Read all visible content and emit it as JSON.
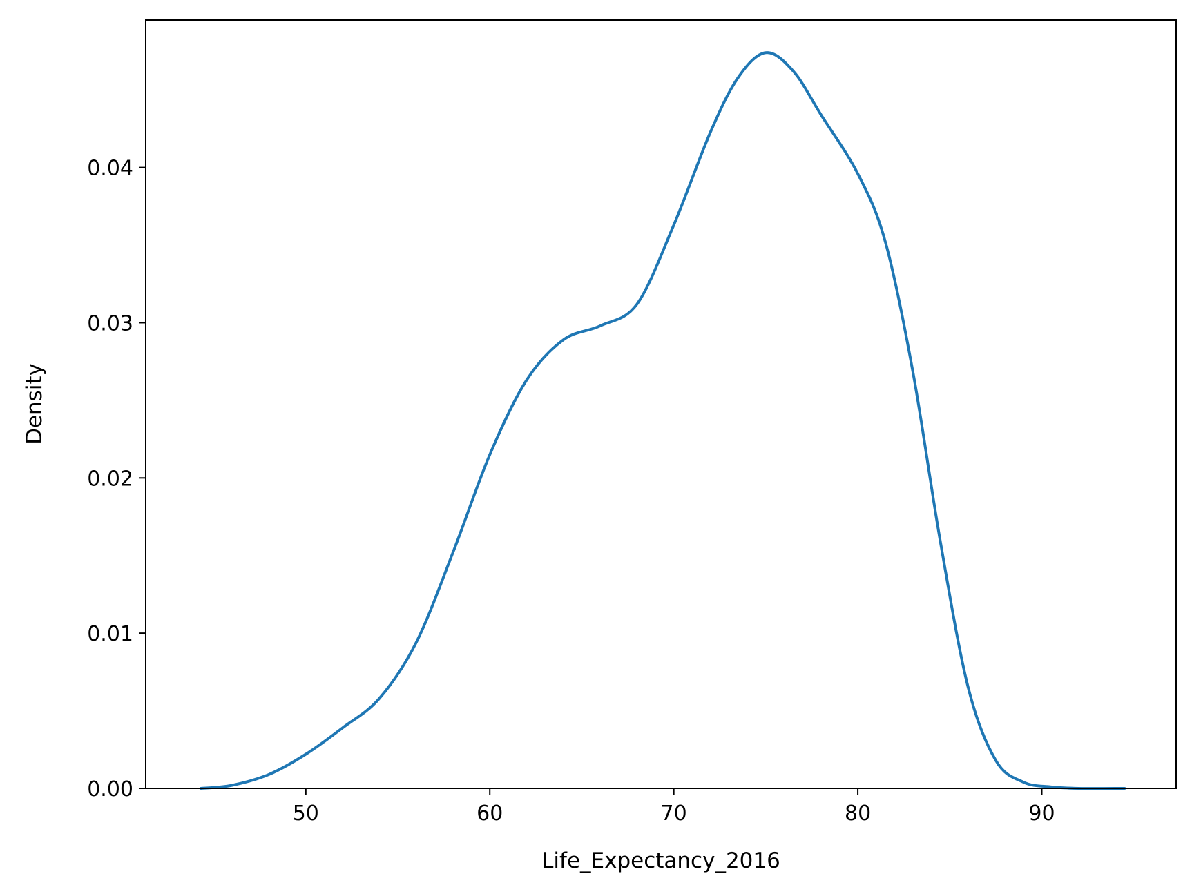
{
  "chart_data": {
    "type": "line",
    "title": "",
    "xlabel": "Life_Expectancy_2016",
    "ylabel": "Density",
    "xlim": [
      41.3,
      97.3
    ],
    "ylim": [
      0.0,
      0.0495
    ],
    "x_ticks": [
      50,
      60,
      70,
      80,
      90
    ],
    "x_tick_labels": [
      "50",
      "60",
      "70",
      "80",
      "90"
    ],
    "y_ticks": [
      0.0,
      0.01,
      0.02,
      0.03,
      0.04
    ],
    "y_tick_labels": [
      "0.00",
      "0.01",
      "0.02",
      "0.03",
      "0.04"
    ],
    "grid": false,
    "line_color": "#1f77b4",
    "series": [
      {
        "x": [
          44.3,
          46.0,
          48.0,
          50.0,
          52.0,
          54.0,
          56.0,
          58.0,
          60.0,
          62.0,
          64.0,
          66.0,
          68.0,
          70.0,
          72.0,
          73.5,
          75.0,
          76.5,
          78.0,
          80.0,
          81.5,
          83.0,
          84.5,
          86.0,
          87.5,
          89.0,
          90.5,
          92.0,
          94.5
        ],
        "y": [
          0.0,
          0.0002,
          0.0009,
          0.0022,
          0.0039,
          0.0058,
          0.0094,
          0.0152,
          0.0215,
          0.0263,
          0.0289,
          0.0298,
          0.0312,
          0.0363,
          0.0423,
          0.0458,
          0.0474,
          0.0462,
          0.0434,
          0.0396,
          0.0352,
          0.0268,
          0.0158,
          0.0065,
          0.0018,
          0.0004,
          0.0001,
          0.0,
          0.0
        ]
      }
    ]
  }
}
